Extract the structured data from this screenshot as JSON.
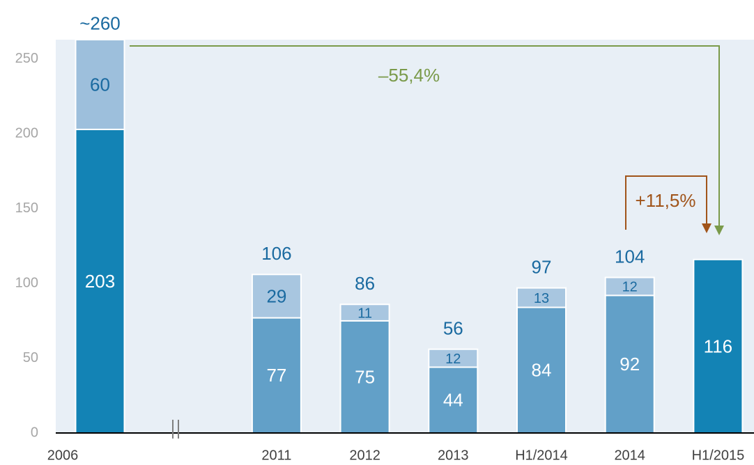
{
  "chart_data": {
    "type": "stacked_bar",
    "categories": [
      "2006",
      null,
      "2011",
      "2012",
      "2013",
      "H1/2014",
      "2014",
      "H1/2015"
    ],
    "series": [
      {
        "values": [
          203,
          null,
          77,
          75,
          44,
          84,
          92,
          116
        ],
        "colors": [
          "#1383b5",
          null,
          "#62a0c8",
          "#62a0c8",
          "#62a0c8",
          "#62a0c8",
          "#62a0c8",
          "#1383b5"
        ],
        "label_color": "#ffffff"
      },
      {
        "values": [
          60,
          null,
          29,
          11,
          12,
          13,
          12,
          null
        ],
        "colors": [
          "#9dbfdc",
          null,
          "#a8c6e0",
          "#a8c6e0",
          "#a8c6e0",
          "#a8c6e0",
          "#a8c6e0",
          null
        ],
        "label_color": "#1a6aa0"
      }
    ],
    "totals": {
      "values": [
        260,
        null,
        106,
        86,
        56,
        97,
        104,
        null
      ],
      "value_labels": [
        "~260",
        null,
        "106",
        "86",
        "56",
        "97",
        "104",
        null
      ],
      "color": "#1a6aa0"
    },
    "annotations": [
      {
        "text": "–55,4%",
        "color": "#7a9a4a"
      },
      {
        "text": "+11,5%",
        "color": "#a0541a"
      }
    ],
    "ylim": [
      0,
      263
    ],
    "yticks": [
      0,
      50,
      100,
      150,
      200,
      250
    ],
    "grid": false
  }
}
